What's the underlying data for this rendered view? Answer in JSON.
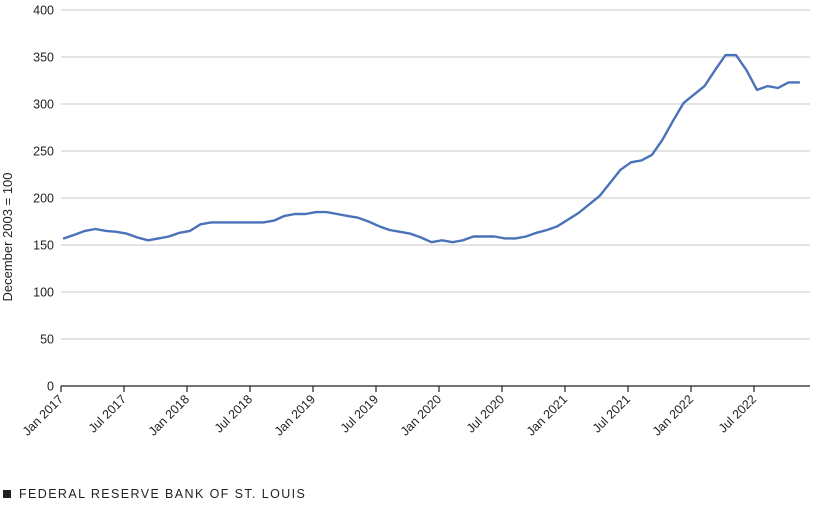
{
  "chart_data": {
    "type": "line",
    "title": "",
    "ylabel": "December 2003 = 100",
    "xlabel": "",
    "ylim": [
      0,
      400
    ],
    "yticks": [
      0,
      50,
      100,
      150,
      200,
      250,
      300,
      350,
      400
    ],
    "grid": true,
    "x_tick_labels": [
      "Jan 2017",
      "Jul 2017",
      "Jan 2018",
      "Jul 2018",
      "Jan 2019",
      "Jul 2019",
      "Jan 2020",
      "Jul 2020",
      "Jan 2021",
      "Jul 2021",
      "Jan 2022",
      "Jul 2022"
    ],
    "x_start": "2017-01",
    "line_color": "#4a72b8",
    "series": [
      {
        "values": [
          157,
          161,
          165,
          167,
          165,
          164,
          162,
          158,
          155,
          157,
          159,
          163,
          165,
          172,
          174,
          174,
          174,
          174,
          174,
          174,
          176,
          181,
          183,
          183,
          185,
          185,
          183,
          181,
          179,
          175,
          170,
          166,
          164,
          162,
          158,
          153,
          155,
          153,
          155,
          159,
          159,
          159,
          157,
          157,
          159,
          163,
          166,
          170,
          177,
          184,
          193,
          202,
          216,
          230,
          238,
          240,
          246,
          262,
          282,
          301,
          310,
          319,
          336,
          352,
          352,
          336,
          315,
          319,
          317,
          323,
          323
        ]
      }
    ]
  },
  "footer": {
    "source": "FEDERAL RESERVE BANK OF ST. LOUIS"
  }
}
